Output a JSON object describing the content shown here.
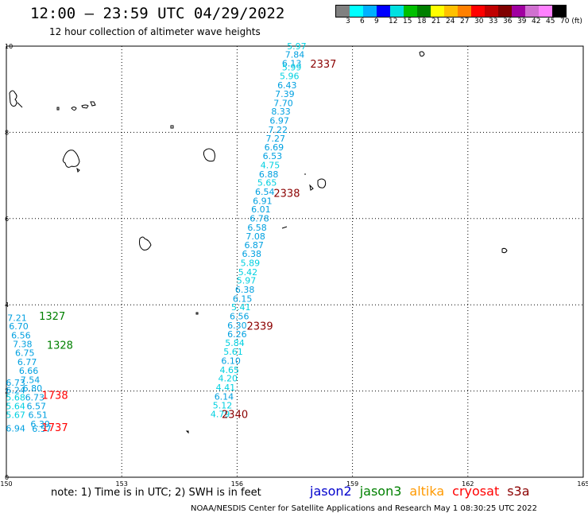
{
  "title": "12:00 – 23:59 UTC 04/29/2022",
  "subtitle": "12 hour collection of altimeter wave heights",
  "colorbar": {
    "colors": [
      "#808080",
      "#00ffff",
      "#00b0ff",
      "#0000ff",
      "#00e0e0",
      "#00c000",
      "#008000",
      "#ffff00",
      "#ffc000",
      "#ff8000",
      "#ff0000",
      "#c00000",
      "#800000",
      "#a000a0",
      "#d070d0",
      "#ff80ff",
      "#000000"
    ],
    "labels": [
      "3",
      "6",
      "9",
      "12",
      "15",
      "18",
      "21",
      "24",
      "27",
      "30",
      "33",
      "36",
      "39",
      "42",
      "45",
      "70 (ft)"
    ]
  },
  "axes": {
    "x_ticks": [
      "150",
      "153",
      "156",
      "159",
      "162",
      "165"
    ],
    "y_ticks": [
      "0",
      "2",
      "4",
      "6",
      "8",
      "10"
    ]
  },
  "track_2337_2340": [
    {
      "lon": 157.55,
      "lat": 9.93,
      "v": "5.97"
    },
    {
      "lon": 157.5,
      "lat": 9.73,
      "v": "7.84"
    },
    {
      "lon": 157.42,
      "lat": 9.53,
      "v": "6.13"
    },
    {
      "lon": 157.42,
      "lat": 9.44,
      "v": "5.99"
    },
    {
      "lon": 157.36,
      "lat": 9.23,
      "v": "5.96"
    },
    {
      "lon": 157.3,
      "lat": 9.02,
      "v": "6.43"
    },
    {
      "lon": 157.24,
      "lat": 8.82,
      "v": "7.39"
    },
    {
      "lon": 157.2,
      "lat": 8.61,
      "v": "7.70"
    },
    {
      "lon": 157.14,
      "lat": 8.41,
      "v": "8.33"
    },
    {
      "lon": 157.1,
      "lat": 8.2,
      "v": "6.97"
    },
    {
      "lon": 157.06,
      "lat": 7.99,
      "v": "7.22"
    },
    {
      "lon": 157.0,
      "lat": 7.79,
      "v": "7.27"
    },
    {
      "lon": 156.96,
      "lat": 7.58,
      "v": "6.69"
    },
    {
      "lon": 156.92,
      "lat": 7.38,
      "v": "6.53"
    },
    {
      "lon": 156.86,
      "lat": 7.17,
      "v": "4.75"
    },
    {
      "lon": 156.82,
      "lat": 6.96,
      "v": "6.88"
    },
    {
      "lon": 156.78,
      "lat": 6.76,
      "v": "5.65"
    },
    {
      "lon": 156.72,
      "lat": 6.55,
      "v": "6.54"
    },
    {
      "lon": 156.66,
      "lat": 6.34,
      "v": "6.91"
    },
    {
      "lon": 156.62,
      "lat": 6.14,
      "v": "6.01"
    },
    {
      "lon": 156.58,
      "lat": 5.93,
      "v": "6.78"
    },
    {
      "lon": 156.52,
      "lat": 5.72,
      "v": "6.58"
    },
    {
      "lon": 156.48,
      "lat": 5.52,
      "v": "7.08"
    },
    {
      "lon": 156.44,
      "lat": 5.31,
      "v": "6.87"
    },
    {
      "lon": 156.38,
      "lat": 5.11,
      "v": "6.38"
    },
    {
      "lon": 156.34,
      "lat": 4.9,
      "v": "5.89"
    },
    {
      "lon": 156.28,
      "lat": 4.69,
      "v": "5.42"
    },
    {
      "lon": 156.24,
      "lat": 4.49,
      "v": "5.97"
    },
    {
      "lon": 156.2,
      "lat": 4.28,
      "v": "6.38"
    },
    {
      "lon": 156.14,
      "lat": 4.07,
      "v": "6.15"
    },
    {
      "lon": 156.1,
      "lat": 3.87,
      "v": "5.41"
    },
    {
      "lon": 156.06,
      "lat": 3.66,
      "v": "6.56"
    },
    {
      "lon": 156.0,
      "lat": 3.45,
      "v": "6.30"
    },
    {
      "lon": 156.0,
      "lat": 3.25,
      "v": "6.26"
    },
    {
      "lon": 155.94,
      "lat": 3.04,
      "v": "5.84"
    },
    {
      "lon": 155.9,
      "lat": 2.84,
      "v": "5.61"
    },
    {
      "lon": 155.84,
      "lat": 2.63,
      "v": "6.10"
    },
    {
      "lon": 155.8,
      "lat": 2.42,
      "v": "4.65"
    },
    {
      "lon": 155.76,
      "lat": 2.22,
      "v": "4.20"
    },
    {
      "lon": 155.7,
      "lat": 2.01,
      "v": "4.41"
    },
    {
      "lon": 155.66,
      "lat": 1.8,
      "v": "6.14"
    },
    {
      "lon": 155.62,
      "lat": 1.6,
      "v": "5.12"
    },
    {
      "lon": 155.56,
      "lat": 1.39,
      "v": "4.79"
    }
  ],
  "track_1327_1737": [
    {
      "lon": 150.28,
      "lat": 3.63,
      "v": "7.21"
    },
    {
      "lon": 150.32,
      "lat": 3.43,
      "v": "6.70"
    },
    {
      "lon": 150.38,
      "lat": 3.22,
      "v": "6.56"
    },
    {
      "lon": 150.42,
      "lat": 3.02,
      "v": "7.38"
    },
    {
      "lon": 150.48,
      "lat": 2.81,
      "v": "6.75"
    },
    {
      "lon": 150.54,
      "lat": 2.6,
      "v": "6.77"
    },
    {
      "lon": 150.58,
      "lat": 2.4,
      "v": "6.66"
    },
    {
      "lon": 150.62,
      "lat": 2.19,
      "v": "7.54"
    },
    {
      "lon": 150.24,
      "lat": 2.12,
      "v": "6.73"
    },
    {
      "lon": 150.68,
      "lat": 1.99,
      "v": "6.80"
    },
    {
      "lon": 150.24,
      "lat": 1.95,
      "v": "6.24"
    },
    {
      "lon": 150.74,
      "lat": 1.78,
      "v": "6.73"
    },
    {
      "lon": 150.24,
      "lat": 1.78,
      "v": "5.68"
    },
    {
      "lon": 150.78,
      "lat": 1.58,
      "v": "6.57"
    },
    {
      "lon": 150.24,
      "lat": 1.58,
      "v": "5.64"
    },
    {
      "lon": 150.82,
      "lat": 1.37,
      "v": "6.51"
    },
    {
      "lon": 150.24,
      "lat": 1.37,
      "v": "5.67"
    },
    {
      "lon": 150.88,
      "lat": 1.16,
      "v": "6.39"
    },
    {
      "lon": 150.24,
      "lat": 1.06,
      "v": "6.94"
    },
    {
      "lon": 150.92,
      "lat": 1.05,
      "v": "6.57"
    }
  ],
  "pass_labels": [
    {
      "lon": 157.9,
      "lat": 9.5,
      "text": "2337",
      "color": "#8b0000"
    },
    {
      "lon": 156.95,
      "lat": 6.5,
      "text": "2338",
      "color": "#8b0000"
    },
    {
      "lon": 156.25,
      "lat": 3.42,
      "text": "2339",
      "color": "#8b0000"
    },
    {
      "lon": 155.6,
      "lat": 1.37,
      "text": "2340",
      "color": "#8b0000"
    },
    {
      "lon": 150.85,
      "lat": 3.65,
      "text": "1327",
      "color": "#008000"
    },
    {
      "lon": 151.05,
      "lat": 2.98,
      "text": "1328",
      "color": "#008000"
    },
    {
      "lon": 150.92,
      "lat": 1.82,
      "text": "1738",
      "color": "#ff0000"
    },
    {
      "lon": 150.92,
      "lat": 1.07,
      "text": "1737",
      "color": "#ff0000"
    }
  ],
  "note": "note:  1) Time is in UTC;  2) SWH is in feet",
  "legend": [
    {
      "label": "jason2",
      "color": "#0000cc"
    },
    {
      "label": "jason3",
      "color": "#008000"
    },
    {
      "label": "altika",
      "color": "#ff9900"
    },
    {
      "label": "cryosat",
      "color": "#ff0000"
    },
    {
      "label": "s3a",
      "color": "#8b0000"
    }
  ],
  "footer": "NOAA/NESDIS Center for Satellite Applications and Research    May  1 08:30:25 UTC 2022"
}
